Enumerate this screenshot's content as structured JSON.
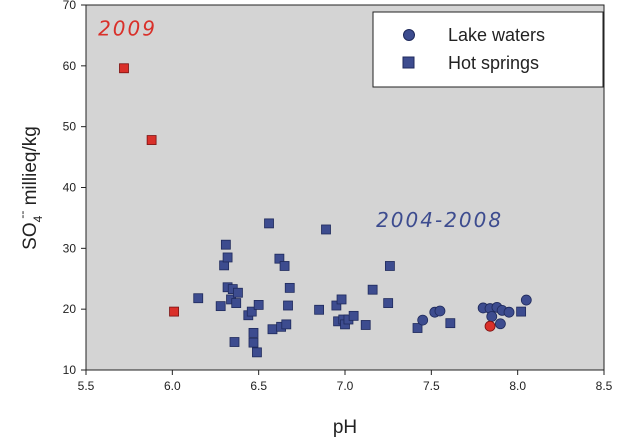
{
  "chart_data": {
    "type": "scatter",
    "xlabel": "pH",
    "ylabel": {
      "base": "SO",
      "sub": "4",
      "sup": "--",
      "rest": " millieq/kg"
    },
    "xlim": [
      5.5,
      8.5
    ],
    "ylim": [
      10,
      70
    ],
    "x_ticks": [
      5.5,
      6.0,
      6.5,
      7.0,
      7.5,
      8.0,
      8.5
    ],
    "x_tick_labels": [
      "5.5",
      "6.0",
      "6.5",
      "7.0",
      "7.5",
      "8.0",
      "8.5"
    ],
    "y_ticks": [
      10,
      20,
      30,
      40,
      50,
      60,
      70
    ],
    "y_tick_labels": [
      "10",
      "20",
      "30",
      "40",
      "50",
      "60",
      "70"
    ],
    "grid": false,
    "legend_position": "top-right",
    "colors": {
      "plot_bg": "#d4d4d4",
      "series_fill": "#3d4c8f",
      "series_stroke": "#1f2a5c",
      "highlight_fill": "#d9302a",
      "highlight_stroke": "#7a1010",
      "annot_2009": "#d9302a",
      "annot_2004": "#3d4c8f"
    },
    "annotations": [
      {
        "text": "2009",
        "x": 5.57,
        "y": 65.0,
        "color_key": "annot_2009"
      },
      {
        "text": "2004-2008",
        "x": 7.18,
        "y": 33.5,
        "color_key": "annot_2004"
      }
    ],
    "series": [
      {
        "name": "Lake waters",
        "marker": "circle",
        "points": [
          [
            7.45,
            18.2
          ],
          [
            7.52,
            19.5
          ],
          [
            7.55,
            19.7
          ],
          [
            7.8,
            20.2
          ],
          [
            7.84,
            20.1
          ],
          [
            7.88,
            20.3
          ],
          [
            7.91,
            19.8
          ],
          [
            7.95,
            19.5
          ],
          [
            8.05,
            21.5
          ],
          [
            7.85,
            18.8
          ],
          [
            7.9,
            17.6
          ]
        ],
        "highlight_points": [
          [
            7.84,
            17.2
          ]
        ]
      },
      {
        "name": "Hot springs",
        "marker": "square",
        "points": [
          [
            6.15,
            21.8
          ],
          [
            6.28,
            20.5
          ],
          [
            6.3,
            27.2
          ],
          [
            6.31,
            30.6
          ],
          [
            6.32,
            28.5
          ],
          [
            6.32,
            23.6
          ],
          [
            6.34,
            21.6
          ],
          [
            6.35,
            23.3
          ],
          [
            6.36,
            14.6
          ],
          [
            6.37,
            21.0
          ],
          [
            6.38,
            22.7
          ],
          [
            6.44,
            19.0
          ],
          [
            6.46,
            19.6
          ],
          [
            6.47,
            14.5
          ],
          [
            6.47,
            16.1
          ],
          [
            6.49,
            12.9
          ],
          [
            6.5,
            20.7
          ],
          [
            6.56,
            34.1
          ],
          [
            6.58,
            16.7
          ],
          [
            6.62,
            28.3
          ],
          [
            6.63,
            17.1
          ],
          [
            6.65,
            27.1
          ],
          [
            6.66,
            17.5
          ],
          [
            6.67,
            20.6
          ],
          [
            6.68,
            23.5
          ],
          [
            6.85,
            19.9
          ],
          [
            6.89,
            33.1
          ],
          [
            6.95,
            20.6
          ],
          [
            6.96,
            18.0
          ],
          [
            6.98,
            21.6
          ],
          [
            6.99,
            18.3
          ],
          [
            7.0,
            17.5
          ],
          [
            7.02,
            18.3
          ],
          [
            7.05,
            18.9
          ],
          [
            7.12,
            17.4
          ],
          [
            7.16,
            23.2
          ],
          [
            7.25,
            21.0
          ],
          [
            7.26,
            27.1
          ],
          [
            7.42,
            16.9
          ],
          [
            7.61,
            17.7
          ],
          [
            8.02,
            19.6
          ]
        ],
        "highlight_points": [
          [
            5.72,
            59.6
          ],
          [
            5.88,
            47.8
          ],
          [
            6.01,
            19.6
          ]
        ]
      }
    ]
  }
}
